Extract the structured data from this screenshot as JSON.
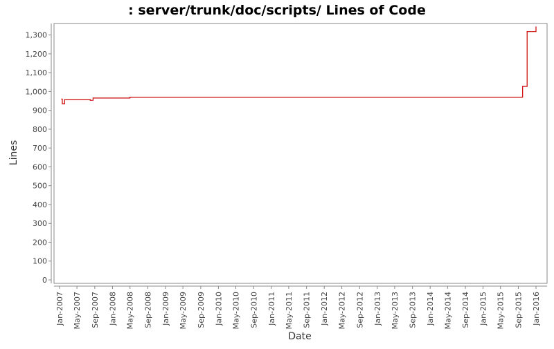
{
  "chart_data": {
    "type": "line",
    "title": ": server/trunk/doc/scripts/ Lines of Code",
    "xlabel": "Date",
    "ylabel": "Lines",
    "ylim": [
      0,
      1350
    ],
    "xlim": [
      "2006-12-01",
      "2016-02-01"
    ],
    "y_ticks": [
      0,
      100,
      200,
      300,
      400,
      500,
      600,
      700,
      800,
      900,
      1000,
      1100,
      1200,
      1300
    ],
    "y_tick_labels": [
      "0",
      "100",
      "200",
      "300",
      "400",
      "500",
      "600",
      "700",
      "800",
      "900",
      "1,000",
      "1,100",
      "1,200",
      "1,300"
    ],
    "x_ticks": [
      "2007-01-01",
      "2007-05-01",
      "2007-09-01",
      "2008-01-01",
      "2008-05-01",
      "2008-09-01",
      "2009-01-01",
      "2009-05-01",
      "2009-09-01",
      "2010-01-01",
      "2010-05-01",
      "2010-09-01",
      "2011-01-01",
      "2011-05-01",
      "2011-09-01",
      "2012-01-01",
      "2012-05-01",
      "2012-09-01",
      "2013-01-01",
      "2013-05-01",
      "2013-09-01",
      "2014-01-01",
      "2014-05-01",
      "2014-09-01",
      "2015-01-01",
      "2015-05-01",
      "2015-09-01",
      "2016-01-01"
    ],
    "x_tick_labels": [
      "Jan-2007",
      "May-2007",
      "Sep-2007",
      "Jan-2008",
      "May-2008",
      "Sep-2008",
      "Jan-2009",
      "May-2009",
      "Sep-2009",
      "Jan-2010",
      "May-2010",
      "Sep-2010",
      "Jan-2011",
      "May-2011",
      "Sep-2011",
      "Jan-2012",
      "May-2012",
      "Sep-2012",
      "Jan-2013",
      "May-2013",
      "Sep-2013",
      "Jan-2014",
      "May-2014",
      "Sep-2014",
      "Jan-2015",
      "May-2015",
      "Sep-2015",
      "Jan-2016"
    ],
    "grid": false,
    "legend": "none",
    "series": [
      {
        "color": "#cc0000",
        "step": true,
        "points": [
          {
            "x": "2007-01-15",
            "y": 960
          },
          {
            "x": "2007-01-20",
            "y": 935
          },
          {
            "x": "2007-02-05",
            "y": 957
          },
          {
            "x": "2007-08-01",
            "y": 953
          },
          {
            "x": "2007-08-20",
            "y": 965
          },
          {
            "x": "2008-05-01",
            "y": 970
          },
          {
            "x": "2015-10-01",
            "y": 1027
          },
          {
            "x": "2015-11-01",
            "y": 1318
          },
          {
            "x": "2016-01-01",
            "y": 1343
          }
        ]
      }
    ]
  }
}
